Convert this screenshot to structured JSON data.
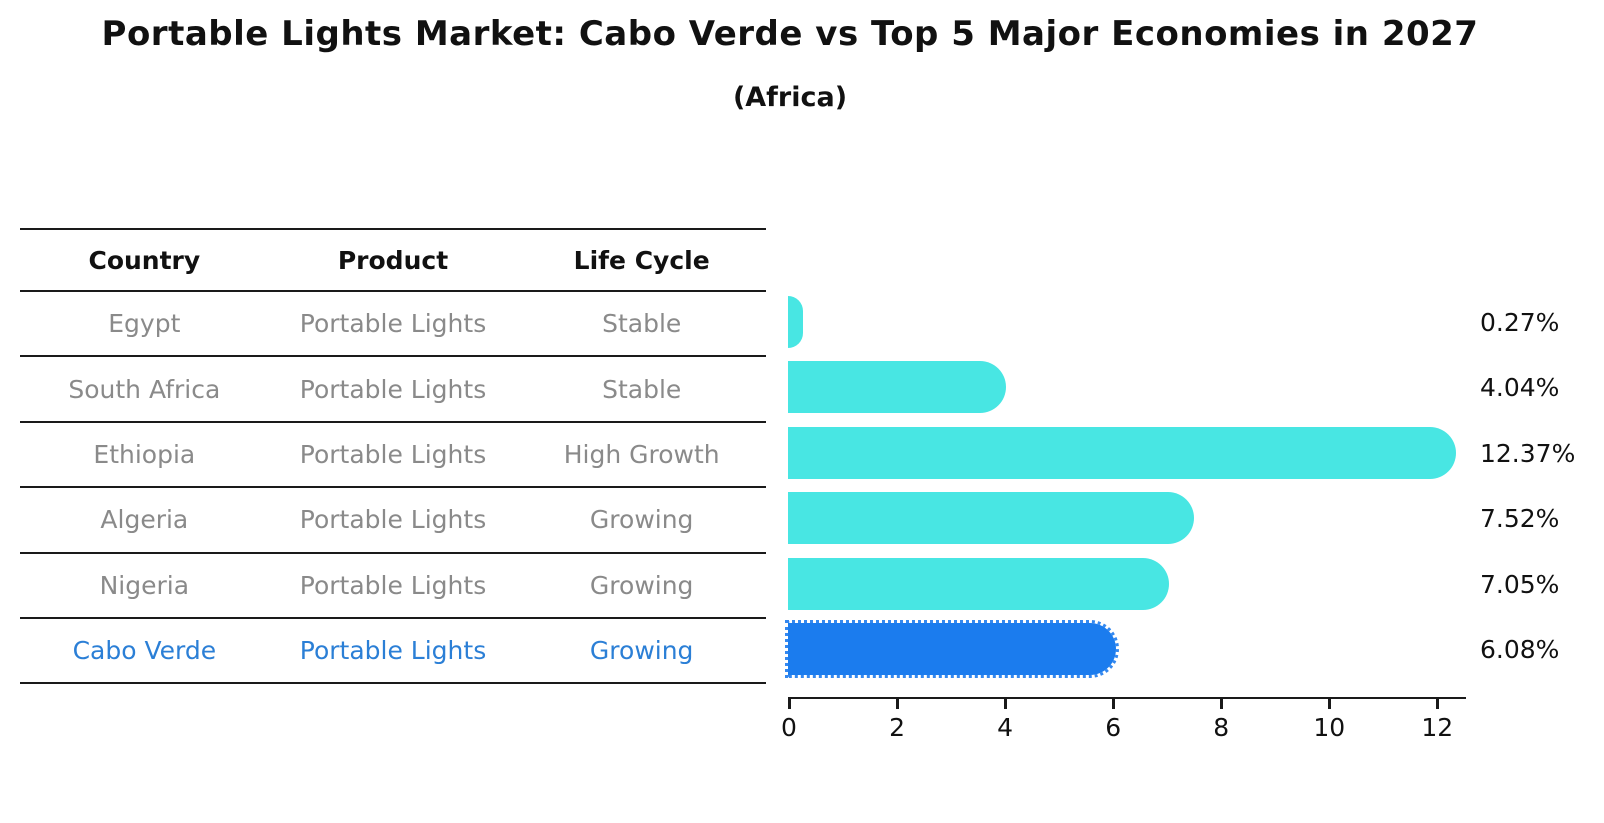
{
  "title": "Portable Lights Market: Cabo Verde vs Top 5 Major Economies in 2027",
  "subtitle": "(Africa)",
  "table": {
    "headers": [
      "Country",
      "Product",
      "Life Cycle"
    ],
    "rows": [
      {
        "country": "Egypt",
        "product": "Portable Lights",
        "life_cycle": "Stable",
        "highlight": false
      },
      {
        "country": "South Africa",
        "product": "Portable Lights",
        "life_cycle": "Stable",
        "highlight": false
      },
      {
        "country": "Ethiopia",
        "product": "Portable Lights",
        "life_cycle": "High Growth",
        "highlight": false
      },
      {
        "country": "Algeria",
        "product": "Portable Lights",
        "life_cycle": "Growing",
        "highlight": false
      },
      {
        "country": "Nigeria",
        "product": "Portable Lights",
        "life_cycle": "Growing",
        "highlight": false
      },
      {
        "country": "Cabo Verde",
        "product": "Portable Lights",
        "life_cycle": "Growing",
        "highlight": true
      }
    ]
  },
  "chart_data": {
    "type": "bar",
    "orientation": "horizontal",
    "title": "Portable Lights Market: Cabo Verde vs Top 5 Major Economies in 2027",
    "subtitle": "(Africa)",
    "categories": [
      "Egypt",
      "South Africa",
      "Ethiopia",
      "Algeria",
      "Nigeria",
      "Cabo Verde"
    ],
    "values": [
      0.27,
      4.04,
      12.37,
      7.52,
      7.05,
      6.08
    ],
    "value_labels": [
      "0.27%",
      "4.04%",
      "12.37%",
      "7.52%",
      "7.05%",
      "6.08%"
    ],
    "xlabel": "",
    "ylabel": "",
    "xlim": [
      0,
      12.55
    ],
    "x_ticks": [
      0,
      2,
      4,
      6,
      8,
      10,
      12
    ],
    "grid": false,
    "legend_position": "none",
    "highlight_index": 5,
    "bar_color": "#48E6E3",
    "highlight_bar_color": "#1B7CEE",
    "highlight_text_color": "#2B7FD6",
    "text_color": "#111111",
    "muted_text_color": "#8a8a8a"
  }
}
